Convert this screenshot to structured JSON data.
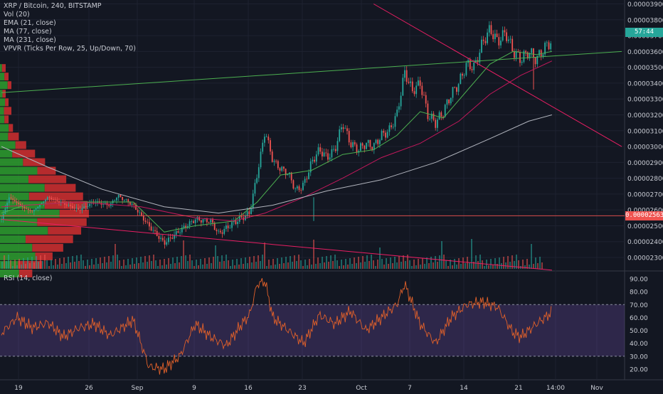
{
  "header": {
    "title": "XRP / Bitcoin, 240, BITSTAMP",
    "indicators": [
      "Vol (20)",
      "EMA (21, close)",
      "MA (77, close)",
      "MA (231, close)",
      "VPVR (Ticks Per Row, 25, Up/Down, 70)"
    ]
  },
  "rsi_panel": {
    "title": "RSI (14, close)"
  },
  "price_tags": {
    "countdown": "57:44",
    "current_price": "0.00002563"
  },
  "colors": {
    "background": "#131722",
    "up": "#26a69a",
    "down": "#ef5350",
    "ema21": "#4caf50",
    "ma77": "#c2185b",
    "ma231": "#b2b5be",
    "trendline_support": "#4caf50",
    "trendline_resistance": "#e91e63",
    "rsi_line": "#e0602a",
    "rsi_band": "#7e57c2",
    "countdown_tag": "#26a69a",
    "price_tag": "#ef5350",
    "vpvr_up": "#2e9f2e",
    "vpvr_down": "#d32f2f"
  },
  "chart_data": [
    {
      "type": "candlestick",
      "title": "XRP / Bitcoin, 240, BITSTAMP",
      "ylim": [
        2.21e-05,
        3.9e-05
      ],
      "y_ticks": [
        "0.00003900",
        "0.00003800",
        "0.00003700",
        "0.00003600",
        "0.00003500",
        "0.00003400",
        "0.00003300",
        "0.00003200",
        "0.00003100",
        "0.00003000",
        "0.00002900",
        "0.00002800",
        "0.00002700",
        "0.00002600",
        "0.00002500",
        "0.00002400",
        "0.00002300"
      ],
      "x_ticks": [
        "19",
        "26",
        "Sep",
        "9",
        "16",
        "23",
        "Oct",
        "7",
        "14",
        "21",
        "14:00",
        "Nov"
      ],
      "current_price": 2.563e-05,
      "price_path": [
        [
          "Aug 16",
          2.54e-05
        ],
        [
          "Aug 17",
          2.68e-05
        ],
        [
          "Aug 19",
          2.61e-05
        ],
        [
          "Aug 20",
          2.59e-05
        ],
        [
          "Aug 22",
          2.68e-05
        ],
        [
          "Aug 24",
          2.64e-05
        ],
        [
          "Aug 26",
          2.6e-05
        ],
        [
          "Aug 28",
          2.65e-05
        ],
        [
          "Aug 30",
          2.63e-05
        ],
        [
          "Aug 31",
          2.69e-05
        ],
        [
          "Sep 1",
          2.63e-05
        ],
        [
          "Sep 3",
          2.5e-05
        ],
        [
          "Sep 5",
          2.39e-05
        ],
        [
          "Sep 7",
          2.47e-05
        ],
        [
          "Sep 9",
          2.54e-05
        ],
        [
          "Sep 11",
          2.53e-05
        ],
        [
          "Sep 12",
          2.45e-05
        ],
        [
          "Sep 14",
          2.52e-05
        ],
        [
          "Sep 16",
          2.58e-05
        ],
        [
          "Sep 17",
          2.83e-05
        ],
        [
          "Sep 18",
          3.1e-05
        ],
        [
          "Sep 19",
          2.91e-05
        ],
        [
          "Sep 20",
          2.86e-05
        ],
        [
          "Sep 21",
          2.83e-05
        ],
        [
          "Sep 22",
          2.72e-05
        ],
        [
          "Sep 23",
          2.76e-05
        ],
        [
          "Sep 24",
          2.9e-05
        ],
        [
          "Sep 25",
          2.98e-05
        ],
        [
          "Sep 26",
          2.93e-05
        ],
        [
          "Sep 27",
          2.98e-05
        ],
        [
          "Sep 28",
          3.15e-05
        ],
        [
          "Sep 29",
          3.02e-05
        ],
        [
          "Sep 30",
          2.98e-05
        ],
        [
          "Oct 1",
          3.02e-05
        ],
        [
          "Oct 2",
          3e-05
        ],
        [
          "Oct 3",
          3.07e-05
        ],
        [
          "Oct 4",
          3.1e-05
        ],
        [
          "Oct 5",
          3.2e-05
        ],
        [
          "Oct 6",
          3.47e-05
        ],
        [
          "Oct 7",
          3.35e-05
        ],
        [
          "Oct 8",
          3.4e-05
        ],
        [
          "Oct 9",
          3.2e-05
        ],
        [
          "Oct 10",
          3.15e-05
        ],
        [
          "Oct 11",
          3.22e-05
        ],
        [
          "Oct 12",
          3.33e-05
        ],
        [
          "Oct 13",
          3.4e-05
        ],
        [
          "Oct 14",
          3.52e-05
        ],
        [
          "Oct 15",
          3.5e-05
        ],
        [
          "Oct 16",
          3.65e-05
        ],
        [
          "Oct 17",
          3.74e-05
        ],
        [
          "Oct 18",
          3.66e-05
        ],
        [
          "Oct 19",
          3.72e-05
        ],
        [
          "Oct 20",
          3.6e-05
        ],
        [
          "Oct 21",
          3.55e-05
        ],
        [
          "Oct 22",
          3.6e-05
        ],
        [
          "Oct 23",
          3.55e-05
        ],
        [
          "Oct 24",
          3.62e-05
        ],
        [
          "Oct 25",
          3.67e-05
        ]
      ],
      "indicator_lines": [
        {
          "name": "EMA (21, close)",
          "points": [
            [
              "Aug 16",
              2.58e-05
            ],
            [
              "Aug 19",
              2.63e-05
            ],
            [
              "Aug 26",
              2.65e-05
            ],
            [
              "Sep 1",
              2.65e-05
            ],
            [
              "Sep 5",
              2.46e-05
            ],
            [
              "Sep 9",
              2.5e-05
            ],
            [
              "Sep 14",
              2.53e-05
            ],
            [
              "Sep 17",
              2.65e-05
            ],
            [
              "Sep 20",
              2.82e-05
            ],
            [
              "Sep 24",
              2.85e-05
            ],
            [
              "Sep 28",
              2.95e-05
            ],
            [
              "Oct 2",
              2.98e-05
            ],
            [
              "Oct 5",
              3.07e-05
            ],
            [
              "Oct 8",
              3.22e-05
            ],
            [
              "Oct 11",
              3.18e-05
            ],
            [
              "Oct 14",
              3.35e-05
            ],
            [
              "Oct 17",
              3.52e-05
            ],
            [
              "Oct 20",
              3.6e-05
            ],
            [
              "Oct 23",
              3.58e-05
            ],
            [
              "Oct 25",
              3.6e-05
            ]
          ]
        },
        {
          "name": "MA (77, close)",
          "points": [
            [
              "Aug 16",
              2.62e-05
            ],
            [
              "Aug 26",
              2.65e-05
            ],
            [
              "Sep 2",
              2.62e-05
            ],
            [
              "Sep 9",
              2.55e-05
            ],
            [
              "Sep 14",
              2.53e-05
            ],
            [
              "Sep 18",
              2.58e-05
            ],
            [
              "Sep 23",
              2.68e-05
            ],
            [
              "Sep 28",
              2.8e-05
            ],
            [
              "Oct 3",
              2.93e-05
            ],
            [
              "Oct 8",
              3.02e-05
            ],
            [
              "Oct 13",
              3.16e-05
            ],
            [
              "Oct 17",
              3.33e-05
            ],
            [
              "Oct 21",
              3.45e-05
            ],
            [
              "Oct 25",
              3.54e-05
            ]
          ]
        },
        {
          "name": "MA (231, close)",
          "points": [
            [
              "Aug 16",
              3e-05
            ],
            [
              "Aug 22",
              2.87e-05
            ],
            [
              "Aug 29",
              2.73e-05
            ],
            [
              "Sep 5",
              2.62e-05
            ],
            [
              "Sep 12",
              2.58e-05
            ],
            [
              "Sep 19",
              2.63e-05
            ],
            [
              "Sep 26",
              2.72e-05
            ],
            [
              "Oct 3",
              2.79e-05
            ],
            [
              "Oct 10",
              2.9e-05
            ],
            [
              "Oct 17",
              3.05e-05
            ],
            [
              "Oct 22",
              3.16e-05
            ],
            [
              "Oct 25",
              3.2e-05
            ]
          ]
        }
      ],
      "trendlines": [
        {
          "kind": "support",
          "from": [
            "Aug 16",
            3.34e-05
          ],
          "to": [
            "Nov 3",
            3.6e-05
          ]
        },
        {
          "kind": "resistance",
          "from": [
            "Oct 2",
            3.9e-05
          ],
          "to": [
            "Nov 3",
            3e-05
          ]
        },
        {
          "kind": "descending",
          "from": [
            "Aug 16",
            2.54e-05
          ],
          "to": [
            "Oct 25",
            2.22e-05
          ]
        }
      ]
    },
    {
      "type": "line",
      "title": "RSI (14, close)",
      "ylim": [
        15,
        95
      ],
      "y_ticks": [
        "90.00",
        "80.00",
        "70.00",
        "60.00",
        "50.00",
        "40.00",
        "30.00",
        "20.00"
      ],
      "bands": [
        30,
        70
      ],
      "points": [
        [
          "Aug 16",
          48
        ],
        [
          "Aug 18",
          60
        ],
        [
          "Aug 20",
          52
        ],
        [
          "Aug 22",
          56
        ],
        [
          "Aug 24",
          45
        ],
        [
          "Aug 26",
          52
        ],
        [
          "Aug 28",
          55
        ],
        [
          "Aug 30",
          46
        ],
        [
          "Sep 1",
          58
        ],
        [
          "Sep 2",
          40
        ],
        [
          "Sep 3",
          22
        ],
        [
          "Sep 5",
          20
        ],
        [
          "Sep 7",
          30
        ],
        [
          "Sep 9",
          55
        ],
        [
          "Sep 11",
          45
        ],
        [
          "Sep 13",
          38
        ],
        [
          "Sep 15",
          55
        ],
        [
          "Sep 16",
          62
        ],
        [
          "Sep 17",
          86
        ],
        [
          "Sep 18",
          88
        ],
        [
          "Sep 19",
          60
        ],
        [
          "Sep 21",
          50
        ],
        [
          "Sep 23",
          40
        ],
        [
          "Sep 25",
          62
        ],
        [
          "Sep 27",
          55
        ],
        [
          "Sep 29",
          65
        ],
        [
          "Oct 1",
          50
        ],
        [
          "Oct 3",
          60
        ],
        [
          "Oct 5",
          70
        ],
        [
          "Oct 6",
          86
        ],
        [
          "Oct 8",
          55
        ],
        [
          "Oct 10",
          40
        ],
        [
          "Oct 12",
          60
        ],
        [
          "Oct 14",
          70
        ],
        [
          "Oct 16",
          72
        ],
        [
          "Oct 18",
          68
        ],
        [
          "Oct 20",
          48
        ],
        [
          "Oct 21",
          45
        ],
        [
          "Oct 23",
          55
        ],
        [
          "Oct 25",
          64
        ]
      ]
    }
  ]
}
